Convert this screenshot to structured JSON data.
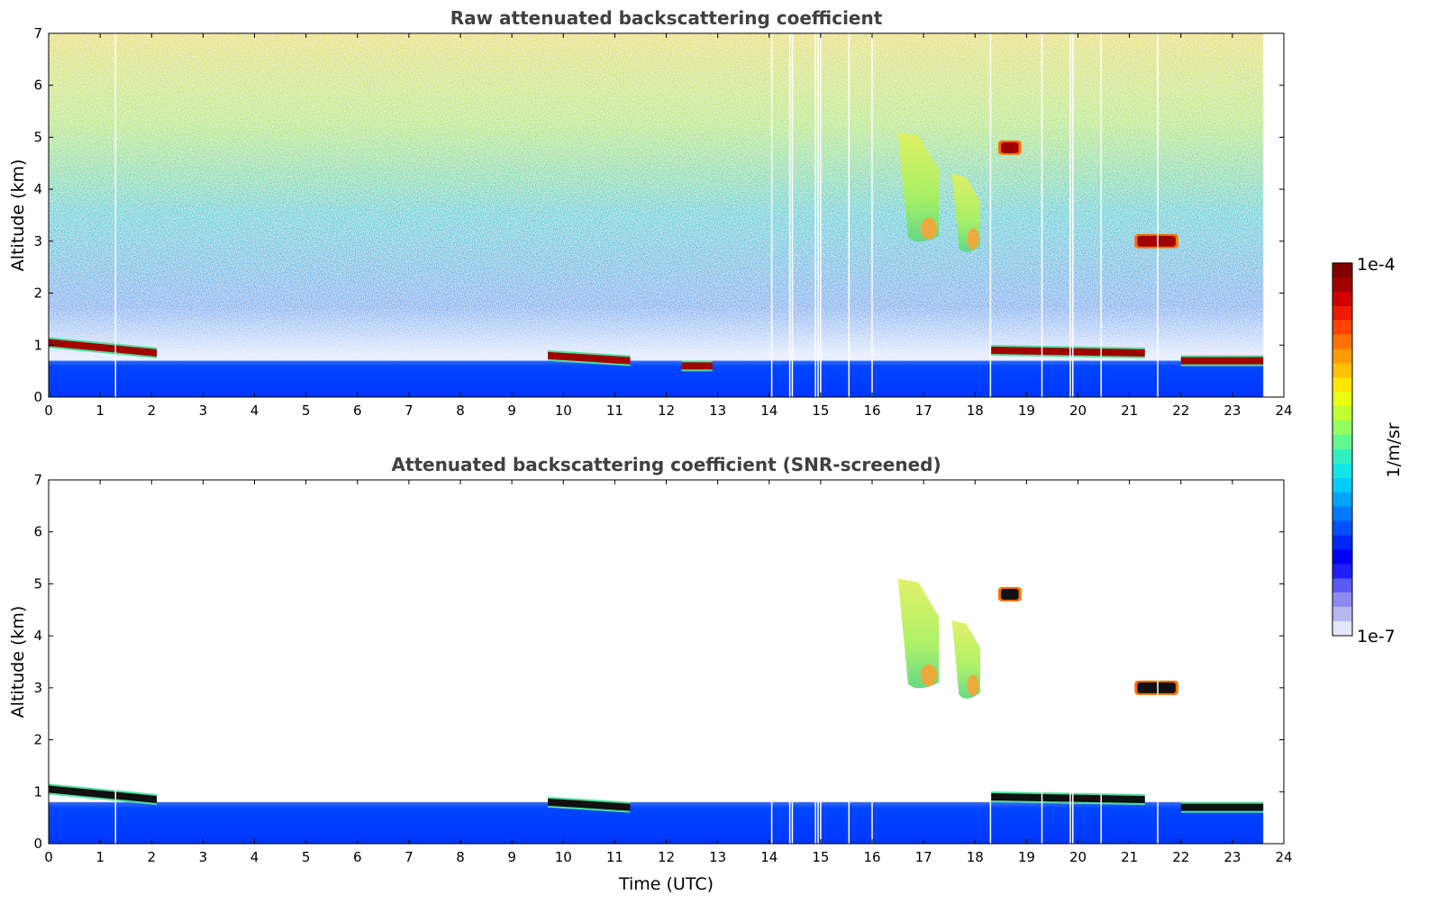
{
  "colorbar": {
    "top_label": "1e-4",
    "bottom_label": "1e-7",
    "unit_label": "1/m/sr",
    "colors": [
      "#e6e6fa",
      "#b8b8f0",
      "#8c8cf0",
      "#5a5af5",
      "#1e1eff",
      "#0000ff",
      "#0026ff",
      "#0050ff",
      "#007aff",
      "#00a4ff",
      "#00ccff",
      "#10e8e8",
      "#30f0c0",
      "#60f890",
      "#90ff60",
      "#c0ff30",
      "#e8ff10",
      "#ffe600",
      "#ffc000",
      "#ff9a00",
      "#ff7000",
      "#ff4400",
      "#f01a00",
      "#d00000",
      "#a00000",
      "#800000"
    ]
  },
  "chart_data": [
    {
      "type": "heatmap",
      "title": "Raw attenuated backscattering coefficient",
      "xlabel": "",
      "ylabel": "Altitude (km)",
      "xlim": [
        0,
        24
      ],
      "ylim": [
        0,
        7
      ],
      "xticks": [
        "0",
        "1",
        "2",
        "3",
        "4",
        "5",
        "6",
        "7",
        "8",
        "9",
        "10",
        "11",
        "12",
        "13",
        "14",
        "15",
        "16",
        "17",
        "18",
        "19",
        "20",
        "21",
        "22",
        "23",
        "24"
      ],
      "yticks": [
        "0",
        "1",
        "2",
        "3",
        "4",
        "5",
        "6",
        "7"
      ],
      "data_end_hour": 23.6,
      "data_gaps_hours": [
        1.3,
        14.05,
        14.4,
        14.45,
        14.9,
        14.95,
        15.0,
        15.55,
        16.0,
        18.3,
        19.3,
        19.85,
        19.9,
        20.45,
        21.55
      ],
      "features": [
        {
          "kind": "surface_layer",
          "t0": 0,
          "t1": 23.6,
          "alt_top_km": 0.7
        },
        {
          "kind": "cloud_base",
          "t0": 0.0,
          "t1": 2.1,
          "alt_start_km": 1.05,
          "alt_end_km": 0.85
        },
        {
          "kind": "cloud_base",
          "t0": 9.7,
          "t1": 11.3,
          "alt_start_km": 0.8,
          "alt_end_km": 0.7
        },
        {
          "kind": "cloud_base",
          "t0": 12.3,
          "t1": 12.9,
          "alt_start_km": 0.6,
          "alt_end_km": 0.6
        },
        {
          "kind": "cloud_base",
          "t0": 18.3,
          "t1": 21.3,
          "alt_start_km": 0.9,
          "alt_end_km": 0.85
        },
        {
          "kind": "cloud_base",
          "t0": 22.0,
          "t1": 23.6,
          "alt_start_km": 0.7,
          "alt_end_km": 0.7
        },
        {
          "kind": "cloud_layer",
          "t0": 21.1,
          "t1": 21.95,
          "alt_km": 3.0
        },
        {
          "kind": "cloud_layer",
          "t0": 18.45,
          "t1": 18.9,
          "alt_km": 4.8
        },
        {
          "kind": "virga",
          "t0": 16.5,
          "t1": 17.3,
          "alt_bottom_km": 3.0,
          "alt_top_km": 5.1
        },
        {
          "kind": "virga",
          "t0": 17.55,
          "t1": 18.1,
          "alt_bottom_km": 2.8,
          "alt_top_km": 4.3
        }
      ]
    },
    {
      "type": "heatmap",
      "title": "Attenuated backscattering coefficient (SNR-screened)",
      "xlabel": "Time (UTC)",
      "ylabel": "Altitude (km)",
      "xlim": [
        0,
        24
      ],
      "ylim": [
        0,
        7
      ],
      "xticks": [
        "0",
        "1",
        "2",
        "3",
        "4",
        "5",
        "6",
        "7",
        "8",
        "9",
        "10",
        "11",
        "12",
        "13",
        "14",
        "15",
        "16",
        "17",
        "18",
        "19",
        "20",
        "21",
        "22",
        "23",
        "24"
      ],
      "yticks": [
        "0",
        "1",
        "2",
        "3",
        "4",
        "5",
        "6",
        "7"
      ],
      "data_end_hour": 23.6,
      "data_gaps_hours": [
        1.3,
        14.05,
        14.4,
        14.45,
        14.9,
        14.95,
        15.0,
        15.55,
        16.0,
        18.3,
        19.3,
        19.85,
        19.9,
        20.45,
        21.55
      ],
      "features": [
        {
          "kind": "surface_layer",
          "t0": 0,
          "t1": 23.6,
          "alt_top_km": 0.8
        },
        {
          "kind": "cloud_base",
          "t0": 0.0,
          "t1": 2.1,
          "alt_start_km": 1.05,
          "alt_end_km": 0.85
        },
        {
          "kind": "cloud_base",
          "t0": 9.7,
          "t1": 11.3,
          "alt_start_km": 0.8,
          "alt_end_km": 0.7
        },
        {
          "kind": "cloud_base",
          "t0": 18.3,
          "t1": 21.3,
          "alt_start_km": 0.9,
          "alt_end_km": 0.85
        },
        {
          "kind": "cloud_base",
          "t0": 22.0,
          "t1": 23.6,
          "alt_start_km": 0.7,
          "alt_end_km": 0.7
        },
        {
          "kind": "cloud_layer",
          "t0": 21.1,
          "t1": 21.95,
          "alt_km": 3.0
        },
        {
          "kind": "cloud_layer",
          "t0": 18.45,
          "t1": 18.9,
          "alt_km": 4.8
        },
        {
          "kind": "virga",
          "t0": 16.5,
          "t1": 17.3,
          "alt_bottom_km": 3.0,
          "alt_top_km": 5.1
        },
        {
          "kind": "virga",
          "t0": 17.55,
          "t1": 18.1,
          "alt_bottom_km": 2.8,
          "alt_top_km": 4.3
        }
      ]
    }
  ]
}
